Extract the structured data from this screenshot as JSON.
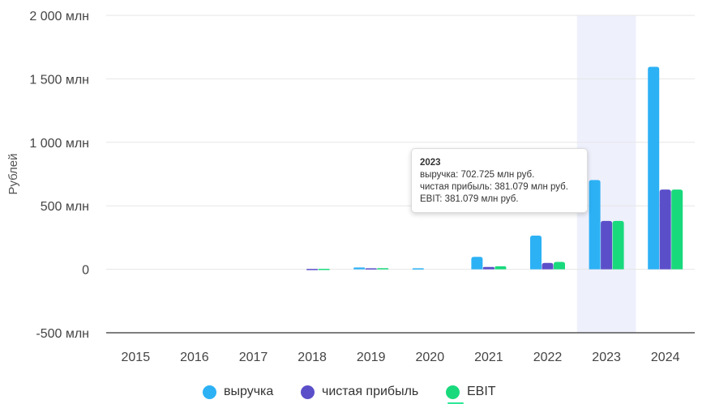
{
  "chart_data": {
    "type": "bar",
    "title": "",
    "xlabel": "",
    "ylabel": "Рублей",
    "ylim": [
      -500,
      2000
    ],
    "y_ticks": [
      {
        "value": 2000,
        "label": "2 000 млн"
      },
      {
        "value": 1500,
        "label": "1 500 млн"
      },
      {
        "value": 1000,
        "label": "1 000 млн"
      },
      {
        "value": 500,
        "label": "500 млн"
      },
      {
        "value": 0,
        "label": "0"
      },
      {
        "value": -500,
        "label": "-500 млн"
      }
    ],
    "categories": [
      "2015",
      "2016",
      "2017",
      "2018",
      "2019",
      "2020",
      "2021",
      "2022",
      "2023",
      "2024"
    ],
    "series": [
      {
        "name": "выручка",
        "color": "#2db1f5",
        "values": [
          0,
          0,
          0,
          0,
          14,
          8,
          98,
          265,
          702.725,
          1595
        ]
      },
      {
        "name": "чистая прибыль",
        "color": "#5b4fc9",
        "values": [
          0,
          0,
          0,
          3,
          8,
          0,
          18,
          50,
          381.079,
          628
        ]
      },
      {
        "name": "EBIT",
        "color": "#19d97d",
        "values": [
          0,
          0,
          0,
          4,
          9,
          0,
          24,
          58,
          381.079,
          628
        ]
      }
    ],
    "highlighted_category": "2023",
    "highlight_color": "#eef0fc",
    "grid": true,
    "legend_position": "bottom",
    "tooltip": {
      "title": "2023",
      "lines": [
        "выручка: 702.725 млн руб.",
        "чистая прибыль: 381.079 млн руб.",
        "EBIT: 381.079 млн руб."
      ]
    }
  }
}
